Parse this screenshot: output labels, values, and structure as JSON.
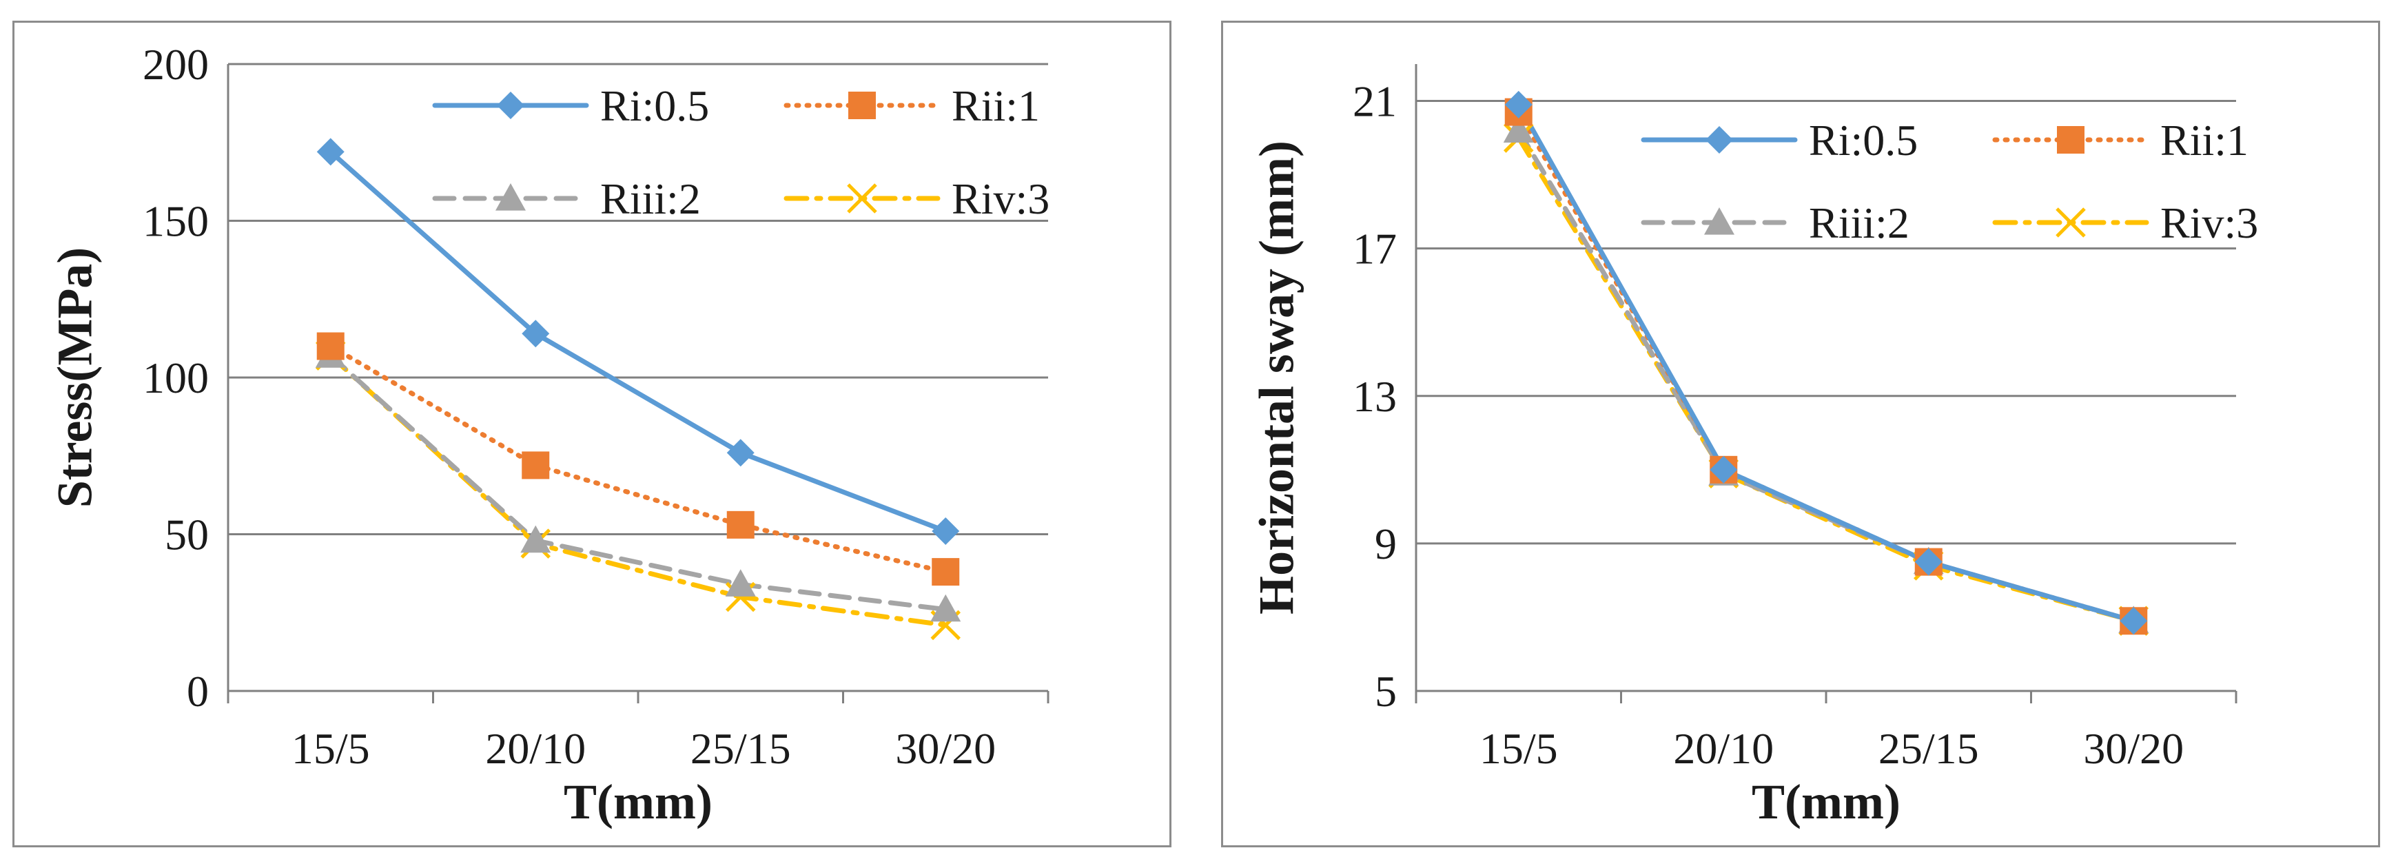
{
  "chart_data": [
    {
      "type": "line",
      "title": "",
      "xlabel": "T(mm)",
      "ylabel": "Stress(MPa)",
      "categories": [
        "15/5",
        "20/10",
        "25/15",
        "30/20"
      ],
      "ylim": [
        0,
        200
      ],
      "yticks": [
        0,
        50,
        100,
        150,
        200
      ],
      "grid": true,
      "legend_position": "top-right",
      "series": [
        {
          "name": "Ri:0.5",
          "values": [
            172,
            114,
            76,
            51
          ],
          "color": "#5b9bd5",
          "marker": "diamond",
          "dash": "solid"
        },
        {
          "name": "Rii:1",
          "values": [
            110,
            72,
            53,
            38
          ],
          "color": "#ed7d31",
          "marker": "square",
          "dash": "dot"
        },
        {
          "name": "Riii:2",
          "values": [
            107,
            48,
            34,
            26
          ],
          "color": "#a5a5a5",
          "marker": "triangle",
          "dash": "dash"
        },
        {
          "name": "Riv:3",
          "values": [
            107,
            47,
            30,
            21
          ],
          "color": "#ffc000",
          "marker": "x",
          "dash": "dashdot"
        }
      ]
    },
    {
      "type": "line",
      "title": "",
      "xlabel": "T(mm)",
      "ylabel": "Horizontal sway (mm)",
      "categories": [
        "15/5",
        "20/10",
        "25/15",
        "30/20"
      ],
      "ylim": [
        5,
        22
      ],
      "yticks": [
        5,
        9,
        13,
        17,
        21
      ],
      "grid": true,
      "legend_position": "top-right",
      "series": [
        {
          "name": "Ri:0.5",
          "values": [
            20.9,
            11.0,
            8.5,
            6.9
          ],
          "color": "#5b9bd5",
          "marker": "diamond",
          "dash": "solid"
        },
        {
          "name": "Rii:1",
          "values": [
            20.7,
            11.0,
            8.5,
            6.9
          ],
          "color": "#ed7d31",
          "marker": "square",
          "dash": "dot"
        },
        {
          "name": "Riii:2",
          "values": [
            20.2,
            10.9,
            8.5,
            6.9
          ],
          "color": "#a5a5a5",
          "marker": "triangle",
          "dash": "dash"
        },
        {
          "name": "Riv:3",
          "values": [
            20.0,
            10.9,
            8.4,
            6.9
          ],
          "color": "#ffc000",
          "marker": "x",
          "dash": "dashdot"
        }
      ]
    }
  ]
}
